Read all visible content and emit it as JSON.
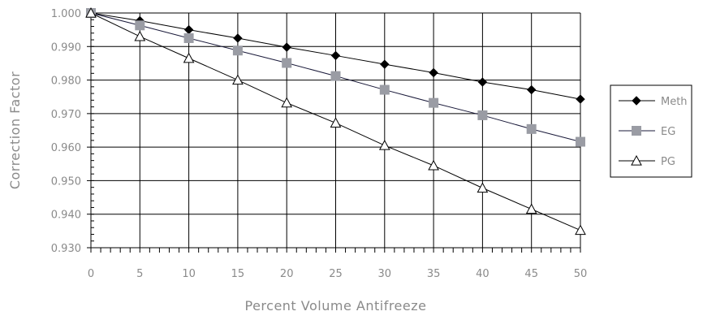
{
  "chart_data": {
    "type": "line",
    "xlabel": "Percent Volume Antifreeze",
    "ylabel": "Correction Factor",
    "x": [
      0,
      5,
      10,
      15,
      20,
      25,
      30,
      35,
      40,
      45,
      50
    ],
    "x_tick_labels": [
      "0",
      "5",
      "10",
      "15",
      "20",
      "25",
      "30",
      "35",
      "40",
      "45",
      "50"
    ],
    "y_tick_labels": [
      "0.930",
      "0.940",
      "0.950",
      "0.960",
      "0.970",
      "0.980",
      "0.990",
      "1.000"
    ],
    "xlim": [
      0,
      50
    ],
    "ylim": [
      0.93,
      1.0
    ],
    "grid": true,
    "legend_position": "right",
    "series": [
      {
        "name": "Meth",
        "marker": "diamond",
        "color": "#000000",
        "line_color": "#000000",
        "values": [
          1.0,
          0.9977,
          0.995,
          0.9925,
          0.9898,
          0.9873,
          0.9847,
          0.9822,
          0.9794,
          0.9771,
          0.9743
        ]
      },
      {
        "name": "EG",
        "marker": "square",
        "color": "#9a9ca4",
        "line_color": "#1a1a3a",
        "values": [
          1.0,
          0.9963,
          0.9925,
          0.9888,
          0.9851,
          0.9812,
          0.9771,
          0.9732,
          0.9695,
          0.9654,
          0.9616
        ]
      },
      {
        "name": "PG",
        "marker": "triangle-open",
        "color": "#000000",
        "line_color": "#000000",
        "values": [
          1.0,
          0.993,
          0.9865,
          0.98,
          0.9732,
          0.9672,
          0.9605,
          0.9545,
          0.9478,
          0.9415,
          0.9352
        ]
      }
    ]
  }
}
